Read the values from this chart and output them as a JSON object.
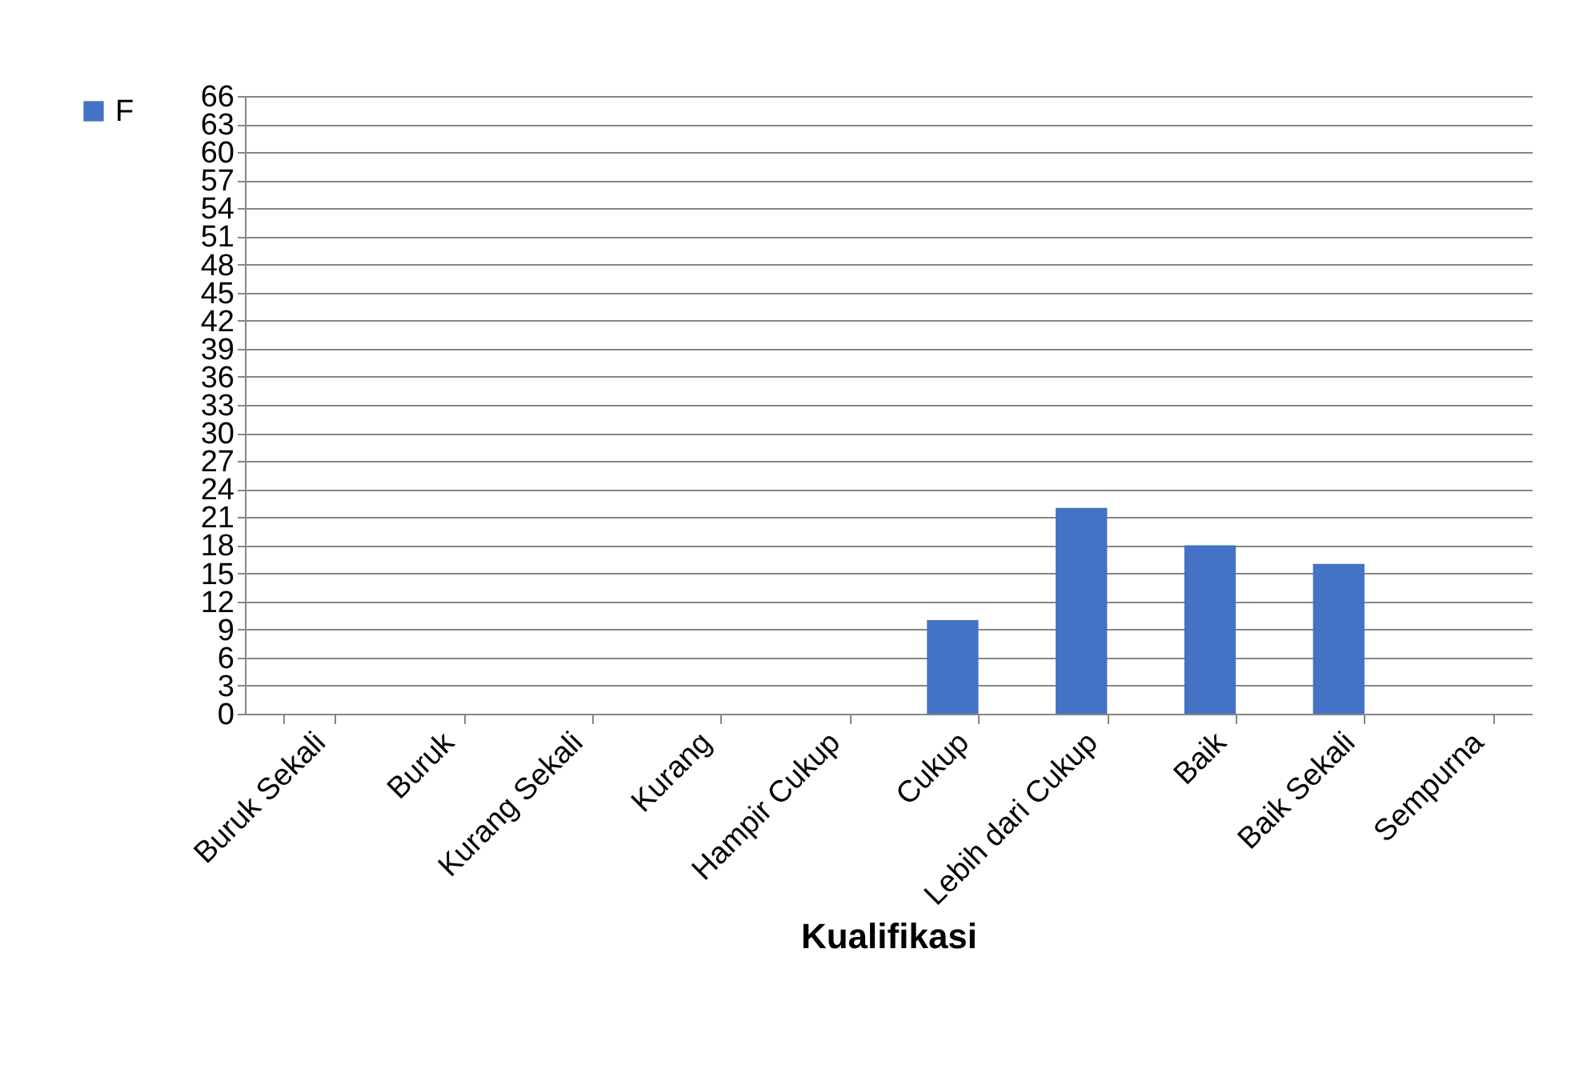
{
  "chart_data": {
    "type": "bar",
    "xlabel": "Kualifikasi",
    "categories": [
      "Buruk Sekali",
      "Buruk",
      "Kurang Sekali",
      "Kurang",
      "Hampir Cukup",
      "Cukup",
      "Lebih dari Cukup",
      "Baik",
      "Baik Sekali",
      "Sempurna"
    ],
    "series": [
      {
        "name": "F",
        "color": "#4472c4",
        "values": [
          0,
          0,
          0,
          0,
          0,
          10,
          22,
          18,
          16,
          0
        ]
      }
    ],
    "ylim": [
      0,
      66
    ],
    "yticks": [
      0,
      3,
      6,
      9,
      12,
      15,
      18,
      21,
      24,
      27,
      30,
      33,
      36,
      39,
      42,
      45,
      48,
      51,
      54,
      57,
      60,
      63,
      66
    ],
    "grid": "y",
    "legend": "left"
  }
}
